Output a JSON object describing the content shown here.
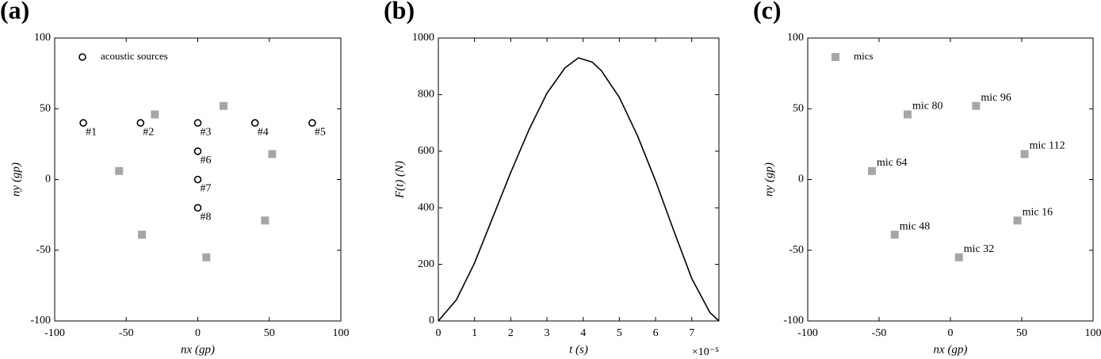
{
  "chart_data": [
    {
      "type": "scatter",
      "panel": "(a)",
      "x_label": "nx (gp)",
      "y_label": "ny (gp)",
      "xlim": [
        -100,
        100
      ],
      "ylim": [
        -100,
        100
      ],
      "xticks": [
        -100,
        -50,
        0,
        50,
        100
      ],
      "yticks": [
        -100,
        -50,
        0,
        50,
        100
      ],
      "legend": "upper left",
      "series": [
        {
          "name": "acoustic sources",
          "marker": "circle",
          "color": "#000000",
          "x": [
            -80,
            -40,
            0,
            40,
            80,
            0,
            0,
            0
          ],
          "y": [
            40,
            40,
            40,
            40,
            40,
            20,
            0,
            -20
          ],
          "labels": [
            "#1",
            "#2",
            "#3",
            "#4",
            "#5",
            "#6",
            "#7",
            "#8"
          ]
        },
        {
          "marker": "square",
          "color": "#a6a6a6",
          "x": [
            -30,
            18,
            -55,
            52,
            -39,
            6,
            47
          ],
          "y": [
            46,
            52,
            6,
            18,
            -39,
            -55,
            -29
          ]
        }
      ]
    },
    {
      "type": "line",
      "panel": "(b)",
      "x_label": "t (s)",
      "y_label": "F(t) (N)",
      "x_multiplier": "×10⁻⁵",
      "xlim": [
        0,
        7.75
      ],
      "ylim": [
        0,
        1000
      ],
      "xticks": [
        0,
        1,
        2,
        3,
        4,
        5,
        6,
        7
      ],
      "yticks": [
        0,
        200,
        400,
        600,
        800,
        1000
      ],
      "color": "#000000",
      "x": [
        0,
        0.5,
        1,
        1.5,
        2,
        2.5,
        3,
        3.5,
        3.87,
        4.25,
        4.5,
        5,
        5.5,
        6,
        6.5,
        7,
        7.5,
        7.75
      ],
      "values": [
        0,
        75,
        205,
        365,
        525,
        675,
        805,
        895,
        930,
        915,
        885,
        790,
        655,
        495,
        320,
        150,
        30,
        0
      ]
    },
    {
      "type": "scatter",
      "panel": "(c)",
      "x_label": "nx (gp)",
      "y_label": "ny (gp)",
      "xlim": [
        -100,
        100
      ],
      "ylim": [
        -100,
        100
      ],
      "xticks": [
        -100,
        -50,
        0,
        50,
        100
      ],
      "yticks": [
        -100,
        -50,
        0,
        50,
        100
      ],
      "legend": "upper left",
      "series": [
        {
          "name": "mics",
          "marker": "square",
          "color": "#a6a6a6",
          "x": [
            -30,
            18,
            -55,
            52,
            -39,
            6,
            47
          ],
          "y": [
            46,
            52,
            6,
            18,
            -39,
            -55,
            -29
          ],
          "labels": [
            "mic 80",
            "mic 96",
            "mic 64",
            "mic 112",
            "mic 48",
            "mic 32",
            "mic 16"
          ]
        }
      ]
    }
  ]
}
